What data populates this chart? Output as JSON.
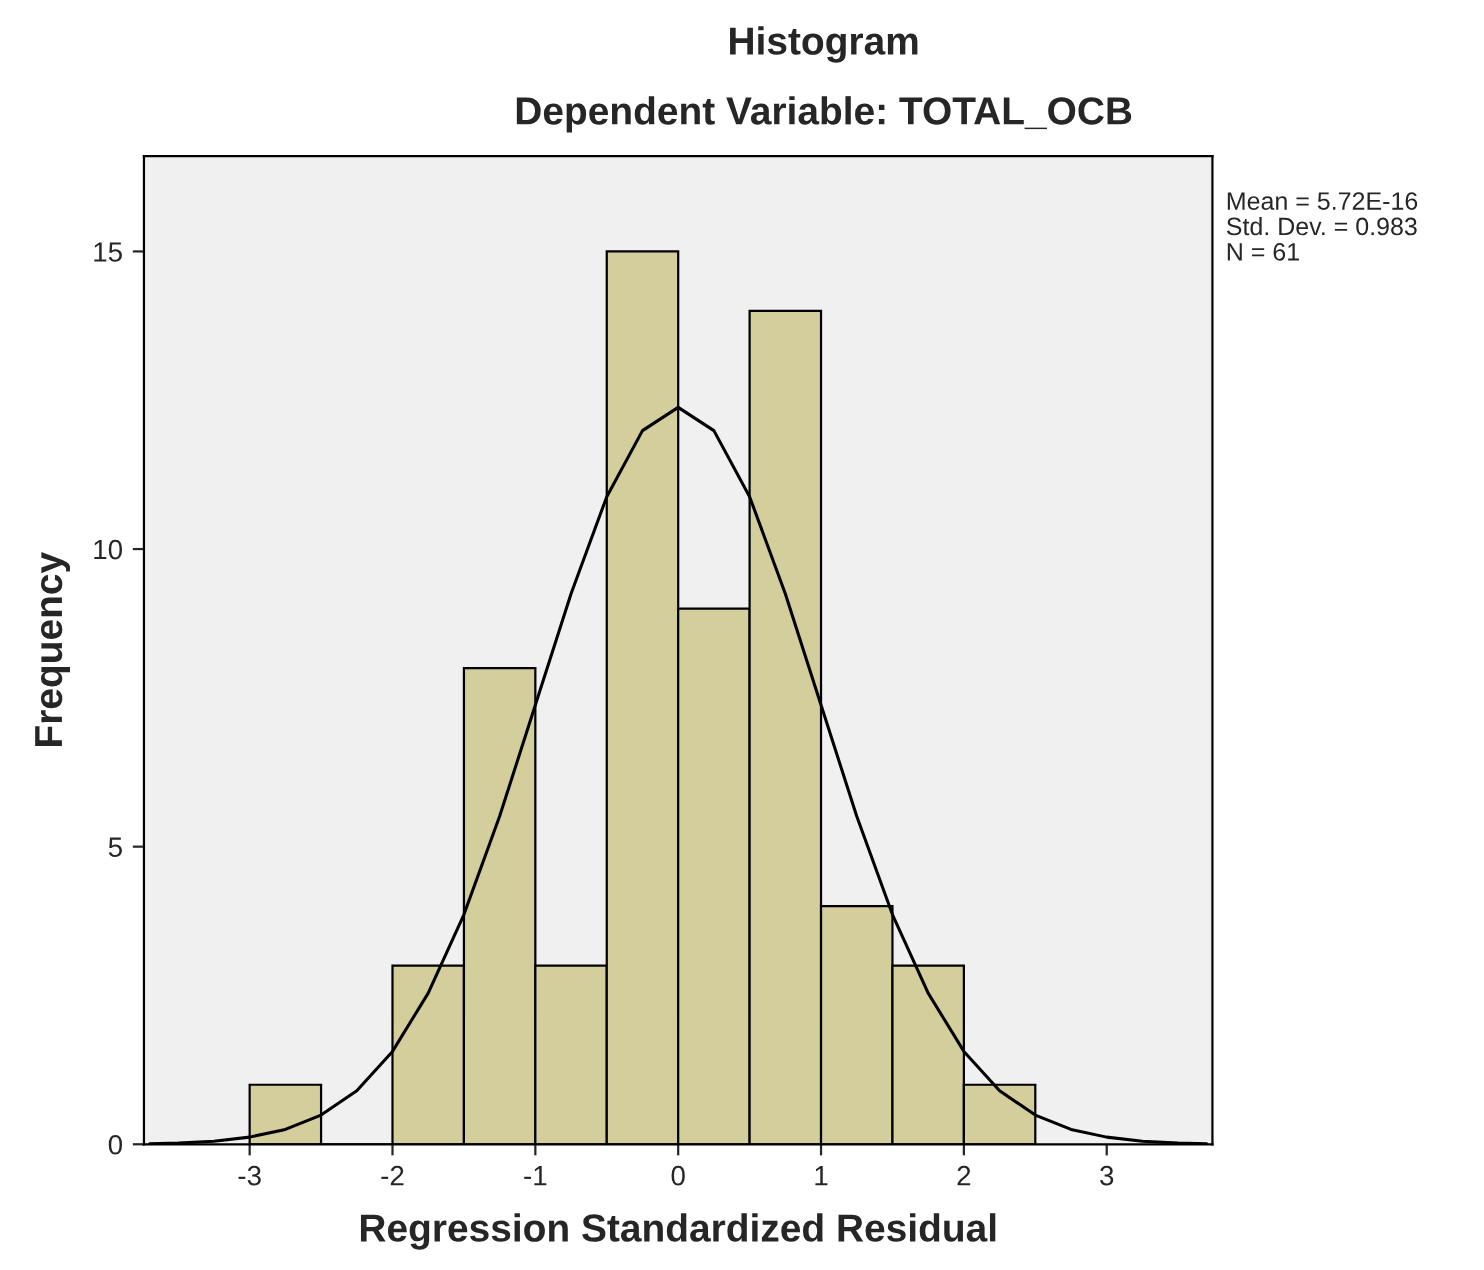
{
  "chart_data": {
    "type": "histogram",
    "title": "Histogram",
    "subtitle": "Dependent Variable: TOTAL_OCB",
    "xlabel": "Regression Standardized Residual",
    "ylabel": "Frequency",
    "bins": [
      -3,
      -2.5,
      -2,
      -1.5,
      -1,
      -0.5,
      0,
      0.5,
      1,
      1.5,
      2,
      2.5
    ],
    "values": [
      1,
      0,
      3,
      8,
      3,
      15,
      9,
      14,
      4,
      3,
      1
    ],
    "color": "#d3ce9c",
    "series": [
      {
        "type": "line",
        "color": "#000000",
        "x": [
          -3.7,
          -3.5,
          -3.25,
          -3,
          -2.75,
          -2.5,
          -2.25,
          -2,
          -1.75,
          -1.5,
          -1.25,
          -1,
          -0.75,
          -0.5,
          -0.25,
          0,
          0.25,
          0.5,
          0.75,
          1,
          1.25,
          1.5,
          1.75,
          2,
          2.25,
          2.5,
          2.75,
          3,
          3.25,
          3.5,
          3.7
        ],
        "values": [
          0.01,
          0.02,
          0.05,
          0.12,
          0.25,
          0.49,
          0.9,
          1.56,
          2.54,
          3.86,
          5.51,
          7.38,
          9.25,
          10.88,
          11.99,
          12.38,
          11.99,
          10.88,
          9.25,
          7.38,
          5.51,
          3.86,
          2.54,
          1.56,
          0.9,
          0.49,
          0.25,
          0.12,
          0.05,
          0.02,
          0.01
        ]
      }
    ],
    "xlim": [
      -3.74,
      3.74
    ],
    "ylim": [
      0,
      16.6
    ],
    "xticks": [
      -3,
      -2,
      -1,
      0,
      1,
      2,
      3
    ],
    "yticks": [
      0,
      5,
      10,
      15
    ],
    "grid": false,
    "legend": false,
    "annotations": [
      "Mean = 5.72E-16",
      "Std. Dev. = 0.983",
      "N = 61"
    ]
  }
}
